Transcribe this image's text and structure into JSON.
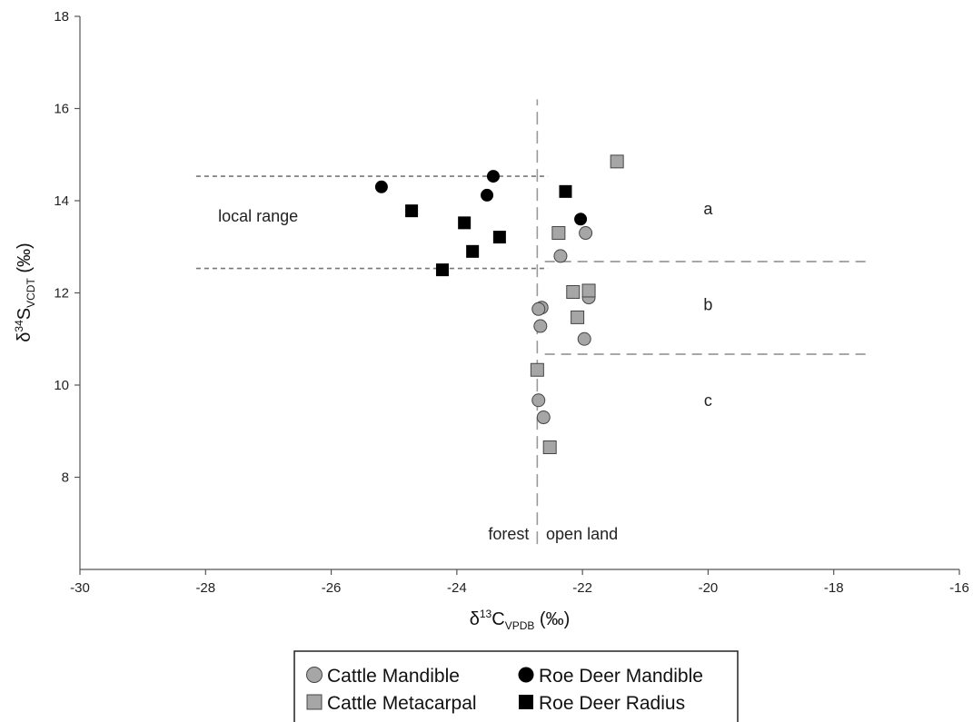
{
  "chart_data": {
    "type": "scatter",
    "xlim": [
      -30,
      -16
    ],
    "ylim": [
      6,
      18
    ],
    "x_ticks": [
      -30,
      -28,
      -26,
      -24,
      -22,
      -20,
      -18,
      -16
    ],
    "y_ticks": [
      8,
      10,
      12,
      14,
      16,
      18
    ],
    "xlabel": {
      "main": "δ",
      "sup": "13",
      "letter": "C",
      "sub": "VPDB",
      "unit": " (‰)"
    },
    "ylabel": {
      "main": "δ",
      "sup": "34",
      "letter": "S",
      "sub": "VCDT",
      "unit": " (‰)"
    },
    "grid": false,
    "legend_position": "bottom",
    "series": [
      {
        "name": "Cattle Mandible",
        "marker": "circle",
        "color": "#a6a6a6",
        "points": [
          {
            "x": -22.35,
            "y": 12.8
          },
          {
            "x": -21.95,
            "y": 13.3
          },
          {
            "x": -22.65,
            "y": 11.68
          },
          {
            "x": -22.7,
            "y": 11.65
          },
          {
            "x": -22.67,
            "y": 11.28
          },
          {
            "x": -21.9,
            "y": 11.9
          },
          {
            "x": -21.97,
            "y": 11.0
          },
          {
            "x": -22.7,
            "y": 9.67
          },
          {
            "x": -22.62,
            "y": 9.3
          }
        ]
      },
      {
        "name": "Cattle Metacarpal",
        "marker": "square",
        "color": "#a6a6a6",
        "points": [
          {
            "x": -21.45,
            "y": 14.85
          },
          {
            "x": -22.38,
            "y": 13.3
          },
          {
            "x": -22.15,
            "y": 12.02
          },
          {
            "x": -21.9,
            "y": 12.05
          },
          {
            "x": -22.08,
            "y": 11.47
          },
          {
            "x": -22.72,
            "y": 10.33
          },
          {
            "x": -22.52,
            "y": 8.65
          }
        ]
      },
      {
        "name": "Roe Deer Mandible",
        "marker": "circle",
        "color": "#000000",
        "points": [
          {
            "x": -25.2,
            "y": 14.3
          },
          {
            "x": -23.42,
            "y": 14.53
          },
          {
            "x": -23.52,
            "y": 14.12
          },
          {
            "x": -22.03,
            "y": 13.6
          }
        ]
      },
      {
        "name": "Roe Deer Radius",
        "marker": "square",
        "color": "#000000",
        "points": [
          {
            "x": -24.72,
            "y": 13.78
          },
          {
            "x": -23.88,
            "y": 13.52
          },
          {
            "x": -23.32,
            "y": 13.21
          },
          {
            "x": -23.75,
            "y": 12.9
          },
          {
            "x": -24.23,
            "y": 12.5
          },
          {
            "x": -22.27,
            "y": 14.2
          }
        ]
      }
    ],
    "reference_lines": [
      {
        "orientation": "horizontal",
        "y": 14.53,
        "x_from": -28.15,
        "x_to": -22.55,
        "style": "short-dash"
      },
      {
        "orientation": "horizontal",
        "y": 12.53,
        "x_from": -28.15,
        "x_to": -22.55,
        "style": "short-dash"
      },
      {
        "orientation": "horizontal",
        "y": 12.68,
        "x_from": -22.6,
        "x_to": -17.4,
        "style": "long-dash"
      },
      {
        "orientation": "horizontal",
        "y": 10.67,
        "x_from": -22.6,
        "x_to": -17.4,
        "style": "long-dash"
      },
      {
        "orientation": "vertical",
        "x": -22.72,
        "y_from": 6.55,
        "y_to": 16.2,
        "style": "long-dash"
      }
    ],
    "annotations": [
      {
        "text": "local range",
        "x": -27.8,
        "y": 13.55,
        "anchor": "start"
      },
      {
        "text": "a",
        "x": -20.0,
        "y": 13.7,
        "anchor": "middle"
      },
      {
        "text": "b",
        "x": -20.0,
        "y": 11.63,
        "anchor": "middle"
      },
      {
        "text": "c",
        "x": -20.0,
        "y": 9.55,
        "anchor": "middle"
      },
      {
        "text": "forest",
        "x": -22.85,
        "y": 6.65,
        "anchor": "end"
      },
      {
        "text": "open land",
        "x": -22.58,
        "y": 6.65,
        "anchor": "start"
      }
    ]
  }
}
